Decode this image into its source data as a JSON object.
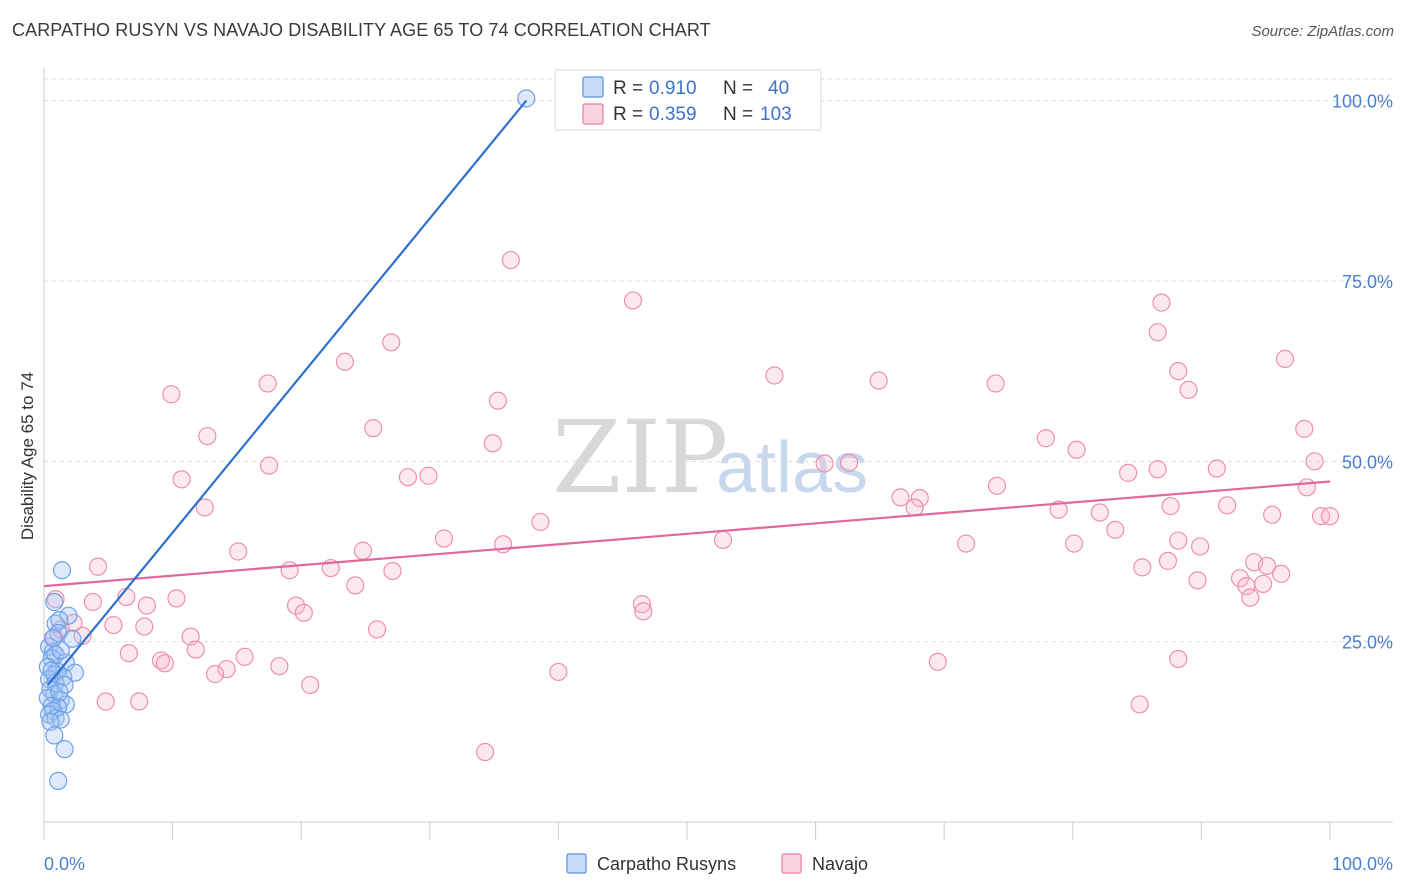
{
  "title": "CARPATHO RUSYN VS NAVAJO DISABILITY AGE 65 TO 74 CORRELATION CHART",
  "source": "Source: ZipAtlas.com",
  "watermark": {
    "zip": "ZIP",
    "atlas": "atlas"
  },
  "colors": {
    "blue": "#6ea1e8",
    "blue_fill": "rgba(160,196,244,0.35)",
    "blue_line": "#2e6fd1",
    "pink": "#ee8fb0",
    "pink_fill": "rgba(246,182,204,0.30)",
    "pink_line": "#e0689a",
    "axis_text": "#4a7fd0",
    "grid": "#dddddd"
  },
  "legend": {
    "rows": [
      {
        "r_label": "R =",
        "r_value": "0.910",
        "n_label": "N =",
        "n_value": "40"
      },
      {
        "r_label": "R =",
        "r_value": "0.359",
        "n_label": "N =",
        "n_value": "103"
      }
    ]
  },
  "chart_data": {
    "type": "scatter",
    "title": "CARPATHO RUSYN VS NAVAJO DISABILITY AGE 65 TO 74 CORRELATION CHART",
    "xlabel": "",
    "ylabel": "Disability Age 65 to 74",
    "xlim": [
      0,
      100
    ],
    "ylim": [
      0,
      103
    ],
    "x_tick_labels": [
      "0.0%",
      "100.0%"
    ],
    "y_ticks": [
      25,
      50,
      75,
      100
    ],
    "y_tick_labels": [
      "25.0%",
      "50.0%",
      "75.0%",
      "100.0%"
    ],
    "grid": true,
    "legend_position": "bottom",
    "series": [
      {
        "name": "Carpatho Rusyns",
        "color": "blue",
        "trend": {
          "x0": 0.3,
          "y0": 19,
          "x1": 37.5,
          "y1": 100
        },
        "points": [
          [
            37.5,
            100.3
          ],
          [
            1.4,
            34.9
          ],
          [
            0.8,
            30.5
          ],
          [
            1.9,
            28.6
          ],
          [
            0.9,
            27.5
          ],
          [
            1.2,
            28.0
          ],
          [
            1.1,
            26.2
          ],
          [
            2.2,
            25.4
          ],
          [
            0.4,
            24.3
          ],
          [
            0.7,
            23.6
          ],
          [
            0.9,
            23.2
          ],
          [
            0.6,
            22.7
          ],
          [
            1.7,
            22.1
          ],
          [
            0.3,
            21.5
          ],
          [
            1.0,
            20.9
          ],
          [
            2.4,
            20.7
          ],
          [
            0.8,
            20.4
          ],
          [
            1.5,
            20.1
          ],
          [
            0.4,
            19.8
          ],
          [
            0.9,
            19.3
          ],
          [
            1.6,
            19.0
          ],
          [
            0.5,
            18.4
          ],
          [
            0.8,
            17.7
          ],
          [
            0.3,
            17.2
          ],
          [
            1.3,
            16.9
          ],
          [
            1.7,
            16.3
          ],
          [
            0.6,
            16.1
          ],
          [
            1.1,
            15.9
          ],
          [
            0.7,
            15.4
          ],
          [
            0.4,
            14.9
          ],
          [
            0.9,
            14.4
          ],
          [
            1.3,
            14.2
          ],
          [
            0.5,
            13.9
          ],
          [
            0.8,
            12.0
          ],
          [
            1.6,
            10.1
          ],
          [
            1.1,
            5.7
          ],
          [
            0.6,
            21.0
          ],
          [
            1.3,
            23.8
          ],
          [
            0.7,
            25.5
          ],
          [
            1.2,
            18.0
          ]
        ]
      },
      {
        "name": "Navajo",
        "color": "pink",
        "trend": {
          "x0": 0,
          "y0": 32.7,
          "x1": 100,
          "y1": 47.2
        },
        "points": [
          [
            36.3,
            77.9
          ],
          [
            45.8,
            72.3
          ],
          [
            86.9,
            72.0
          ],
          [
            86.6,
            67.9
          ],
          [
            27.0,
            66.5
          ],
          [
            23.4,
            63.8
          ],
          [
            96.5,
            64.2
          ],
          [
            88.2,
            62.5
          ],
          [
            56.8,
            61.9
          ],
          [
            64.9,
            61.2
          ],
          [
            17.4,
            60.8
          ],
          [
            74.0,
            60.8
          ],
          [
            89.0,
            59.9
          ],
          [
            9.9,
            59.3
          ],
          [
            35.3,
            58.4
          ],
          [
            98.0,
            54.5
          ],
          [
            25.6,
            54.6
          ],
          [
            12.7,
            53.5
          ],
          [
            77.9,
            53.2
          ],
          [
            34.9,
            52.5
          ],
          [
            80.3,
            51.6
          ],
          [
            98.8,
            50.0
          ],
          [
            62.6,
            49.8
          ],
          [
            60.7,
            49.7
          ],
          [
            17.5,
            49.4
          ],
          [
            91.2,
            49.0
          ],
          [
            86.6,
            48.9
          ],
          [
            84.3,
            48.4
          ],
          [
            28.3,
            47.8
          ],
          [
            10.7,
            47.5
          ],
          [
            74.1,
            46.6
          ],
          [
            98.2,
            46.4
          ],
          [
            66.6,
            45.0
          ],
          [
            68.1,
            44.9
          ],
          [
            12.5,
            43.6
          ],
          [
            67.7,
            43.6
          ],
          [
            87.6,
            43.8
          ],
          [
            78.9,
            43.3
          ],
          [
            92.0,
            43.9
          ],
          [
            82.1,
            42.9
          ],
          [
            95.5,
            42.6
          ],
          [
            99.3,
            42.4
          ],
          [
            100,
            42.4
          ],
          [
            38.6,
            41.6
          ],
          [
            83.3,
            40.5
          ],
          [
            31.1,
            39.3
          ],
          [
            52.8,
            39.1
          ],
          [
            88.2,
            39.0
          ],
          [
            71.7,
            38.6
          ],
          [
            80.1,
            38.6
          ],
          [
            35.7,
            38.5
          ],
          [
            89.9,
            38.2
          ],
          [
            15.1,
            37.5
          ],
          [
            24.8,
            37.6
          ],
          [
            85.4,
            35.3
          ],
          [
            87.4,
            36.2
          ],
          [
            94.1,
            36.0
          ],
          [
            95.1,
            35.5
          ],
          [
            4.2,
            35.4
          ],
          [
            19.1,
            34.9
          ],
          [
            22.3,
            35.2
          ],
          [
            27.1,
            34.8
          ],
          [
            96.2,
            34.4
          ],
          [
            93.0,
            33.8
          ],
          [
            89.7,
            33.5
          ],
          [
            94.8,
            33.0
          ],
          [
            93.5,
            32.7
          ],
          [
            24.2,
            32.8
          ],
          [
            6.4,
            31.2
          ],
          [
            10.3,
            31.0
          ],
          [
            93.8,
            31.1
          ],
          [
            0.9,
            30.9
          ],
          [
            3.8,
            30.5
          ],
          [
            19.6,
            30.0
          ],
          [
            46.5,
            30.2
          ],
          [
            20.2,
            29.0
          ],
          [
            46.6,
            29.2
          ],
          [
            2.3,
            27.6
          ],
          [
            5.4,
            27.3
          ],
          [
            7.8,
            27.1
          ],
          [
            1.3,
            26.7
          ],
          [
            25.9,
            26.7
          ],
          [
            0.8,
            25.6
          ],
          [
            3.0,
            25.8
          ],
          [
            11.4,
            25.7
          ],
          [
            11.8,
            23.9
          ],
          [
            6.6,
            23.4
          ],
          [
            9.1,
            22.4
          ],
          [
            15.6,
            22.9
          ],
          [
            9.4,
            22.0
          ],
          [
            18.3,
            21.6
          ],
          [
            14.2,
            21.2
          ],
          [
            13.3,
            20.5
          ],
          [
            69.5,
            22.2
          ],
          [
            88.2,
            22.6
          ],
          [
            40.0,
            20.8
          ],
          [
            20.7,
            19.0
          ],
          [
            4.8,
            16.7
          ],
          [
            7.4,
            16.7
          ],
          [
            85.2,
            16.3
          ],
          [
            34.3,
            9.7
          ],
          [
            29.9,
            48.0
          ],
          [
            8.0,
            30.0
          ]
        ]
      }
    ]
  },
  "bottom_legend": [
    "Carpatho Rusyns",
    "Navajo"
  ]
}
